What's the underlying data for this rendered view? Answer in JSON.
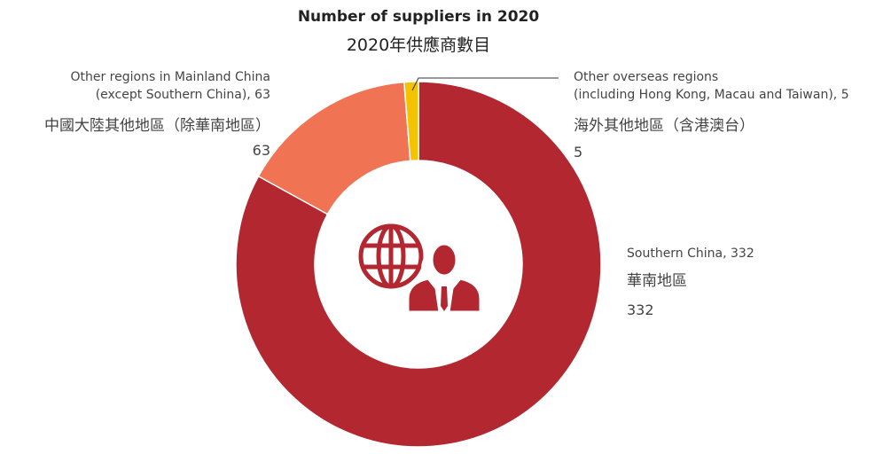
{
  "chart_data": {
    "type": "pie",
    "title": "Number of suppliers in 2020",
    "subtitle": "2020年供應商數目",
    "slices": [
      {
        "label": "Southern China",
        "label_zh": "華南地區",
        "value": 332,
        "color": "#b22730"
      },
      {
        "label": "Other regions in Mainland China (except Southern China)",
        "label_zh": "中國大陸其他地區（除華南地區）",
        "value": 63,
        "color": "#f07354"
      },
      {
        "label": "Other overseas regions (including Hong Kong, Macau and Taiwan)",
        "label_zh": "海外其他地區（含港澳台）",
        "value": 5,
        "color": "#f5c200"
      }
    ]
  },
  "labels": {
    "overseas": {
      "line1": "Other overseas regions",
      "line2": "(including Hong Kong, Macau and Taiwan), 5",
      "zh": "海外其他地區（含港澳台）",
      "value": "5"
    },
    "mainland": {
      "line1": "Other regions in Mainland China",
      "line2": "(except Southern China), 63",
      "zh": "中國大陸其他地區（除華南地區）",
      "value": "63"
    },
    "southern": {
      "line1": "Southern China, 332",
      "zh": "華南地區",
      "value": "332"
    }
  },
  "center_icon": "globe-with-person-icon"
}
